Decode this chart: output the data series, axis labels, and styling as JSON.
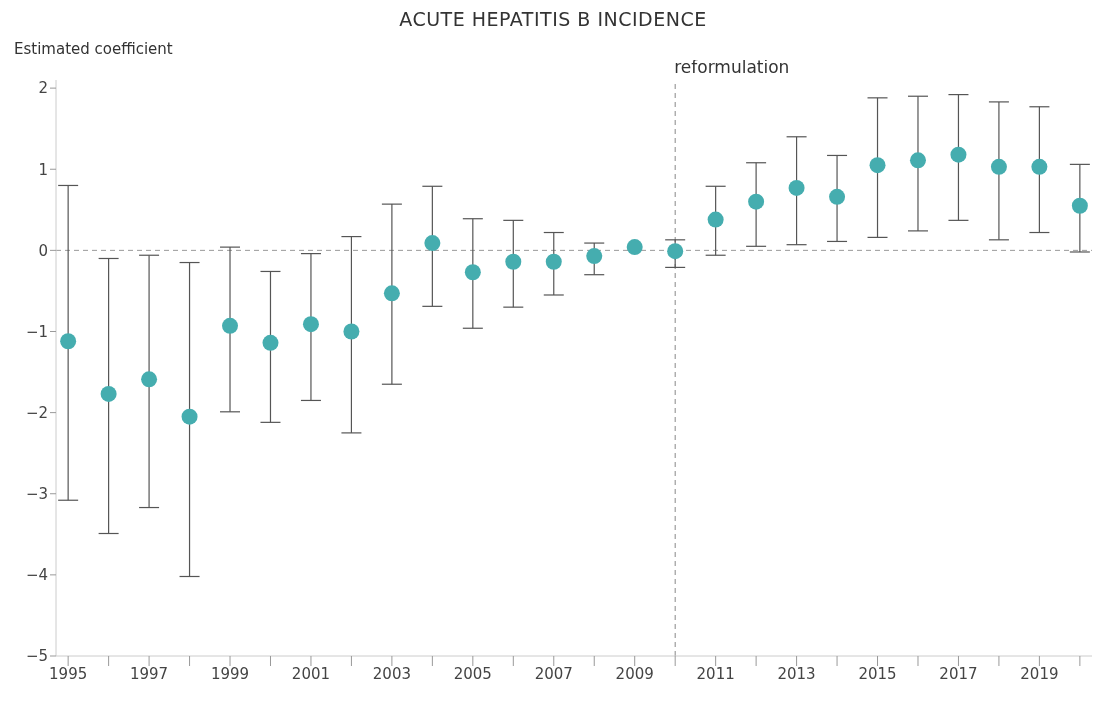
{
  "chart_data": {
    "type": "scatter",
    "title": "ACUTE HEPATITIS B INCIDENCE",
    "ylabel": "Estimated coefficient",
    "x": [
      1995,
      1996,
      1997,
      1998,
      1999,
      2000,
      2001,
      2002,
      2003,
      2004,
      2005,
      2006,
      2007,
      2008,
      2009,
      2010,
      2011,
      2012,
      2013,
      2014,
      2015,
      2016,
      2017,
      2018,
      2019,
      2020
    ],
    "series": [
      {
        "color": "#45adaf",
        "values": [
          -1.12,
          -1.77,
          -1.59,
          -2.05,
          -0.93,
          -1.14,
          -0.91,
          -1.0,
          -0.53,
          0.09,
          -0.27,
          -0.14,
          -0.14,
          -0.07,
          0.04,
          -0.01,
          0.38,
          0.6,
          0.77,
          0.66,
          1.05,
          1.11,
          1.18,
          1.03,
          1.03,
          0.55
        ],
        "errors": [
          [
            -3.08,
            0.8
          ],
          [
            -3.49,
            -0.1
          ],
          [
            -3.17,
            -0.06
          ],
          [
            -4.02,
            -0.15
          ],
          [
            -1.99,
            0.04
          ],
          [
            -2.12,
            -0.26
          ],
          [
            -1.85,
            -0.04
          ],
          [
            -2.25,
            0.17
          ],
          [
            -1.65,
            0.57
          ],
          [
            -0.69,
            0.79
          ],
          [
            -0.96,
            0.39
          ],
          [
            -0.7,
            0.37
          ],
          [
            -0.55,
            0.22
          ],
          [
            -0.3,
            0.09
          ],
          null,
          [
            -0.21,
            0.13
          ],
          [
            -0.06,
            0.79
          ],
          [
            0.05,
            1.08
          ],
          [
            0.07,
            1.4
          ],
          [
            0.11,
            1.17
          ],
          [
            0.16,
            1.88
          ],
          [
            0.24,
            1.9
          ],
          [
            0.37,
            1.92
          ],
          [
            0.13,
            1.83
          ],
          [
            0.22,
            1.77
          ],
          [
            -0.02,
            1.06
          ]
        ]
      }
    ],
    "xlim": [
      1994.7,
      2020.3
    ],
    "xticks": [
      1995,
      {
        "value": 1996,
        "label": null
      },
      1997,
      {
        "value": 1998,
        "label": null
      },
      1999,
      {
        "value": 2000,
        "label": null
      },
      2001,
      {
        "value": 2002,
        "label": null
      },
      2003,
      {
        "value": 2004,
        "label": null
      },
      2005,
      {
        "value": 2006,
        "label": null
      },
      2007,
      {
        "value": 2008,
        "label": null
      },
      2009,
      {
        "value": 2010,
        "label": null
      },
      2011,
      {
        "value": 2012,
        "label": null
      },
      2013,
      {
        "value": 2014,
        "label": null
      },
      2015,
      {
        "value": 2016,
        "label": null
      },
      2017,
      {
        "value": 2018,
        "label": null
      },
      2019,
      {
        "value": 2020,
        "label": null
      }
    ],
    "ylim": [
      -5,
      2.1
    ],
    "yticks": [
      -5,
      -4,
      -3,
      -2,
      -1,
      0,
      1,
      2
    ],
    "ref_lines": [
      {
        "axis": "y",
        "value": 0,
        "line_style": "dashed",
        "color": "#999999"
      },
      {
        "axis": "x",
        "value": 2010,
        "label": "reformulation",
        "line_style": "dashed",
        "color": "#888888"
      }
    ],
    "grid": false,
    "marker": "circle"
  }
}
